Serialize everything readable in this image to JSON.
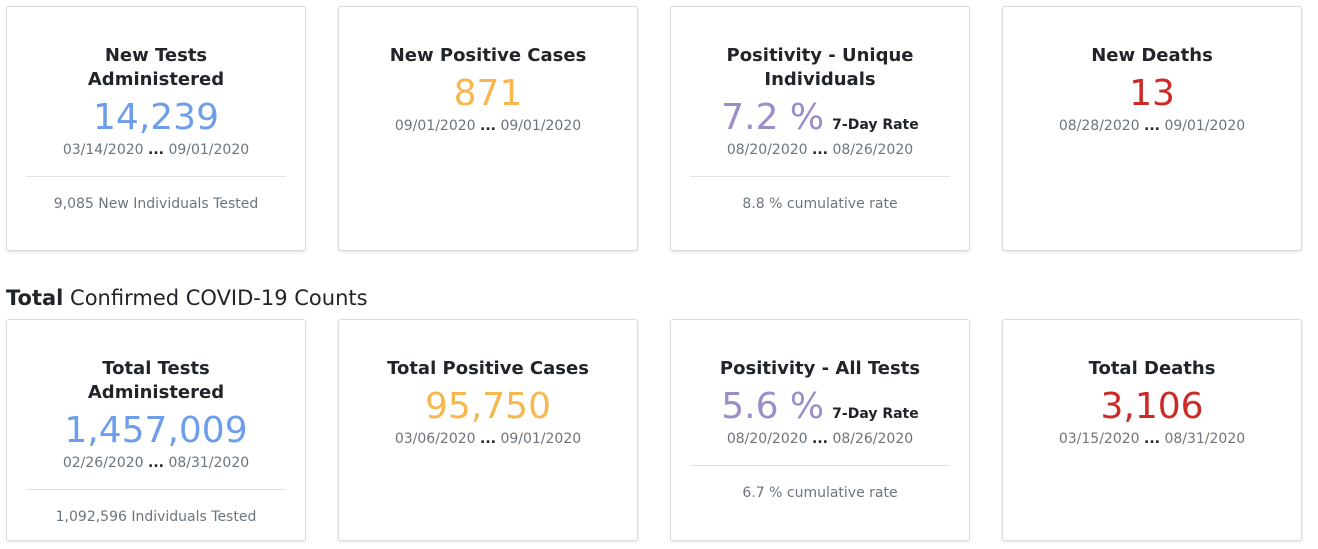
{
  "daily": [
    {
      "title": "New Tests Administered",
      "value": "14,239",
      "date_start": "03/14/2020",
      "ellipsis": "...",
      "date_end": "09/01/2020",
      "footer": "9,085 New Individuals Tested"
    },
    {
      "title": "New Positive Cases",
      "value": "871",
      "date_start": "09/01/2020",
      "ellipsis": "...",
      "date_end": "09/01/2020"
    },
    {
      "title": "Positivity - Unique Individuals",
      "value": "7.2 %",
      "rate_label": "7-Day Rate",
      "date_start": "08/20/2020",
      "ellipsis": "...",
      "date_end": "08/26/2020",
      "footer": "8.8 % cumulative rate"
    },
    {
      "title": "New Deaths",
      "value": "13",
      "date_start": "08/28/2020",
      "ellipsis": "...",
      "date_end": "09/01/2020"
    }
  ],
  "section": {
    "bold": "Total",
    "rest": " Confirmed COVID-19 Counts"
  },
  "totals": [
    {
      "title": "Total Tests Administered",
      "value": "1,457,009",
      "date_start": "02/26/2020",
      "ellipsis": "...",
      "date_end": "08/31/2020",
      "footer": "1,092,596 Individuals Tested"
    },
    {
      "title": "Total Positive Cases",
      "value": "95,750",
      "date_start": "03/06/2020",
      "ellipsis": "...",
      "date_end": "09/01/2020"
    },
    {
      "title": "Positivity - All Tests",
      "value": "5.6 %",
      "rate_label": "7-Day Rate",
      "date_start": "08/20/2020",
      "ellipsis": "...",
      "date_end": "08/26/2020",
      "footer": "6.7 % cumulative rate"
    },
    {
      "title": "Total Deaths",
      "value": "3,106",
      "date_start": "03/15/2020",
      "ellipsis": "...",
      "date_end": "08/31/2020"
    }
  ],
  "colors": {
    "tests": "#6d9eeb",
    "cases": "#f6b84e",
    "positivity": "#9c8dc9",
    "deaths": "#cc2a26"
  }
}
